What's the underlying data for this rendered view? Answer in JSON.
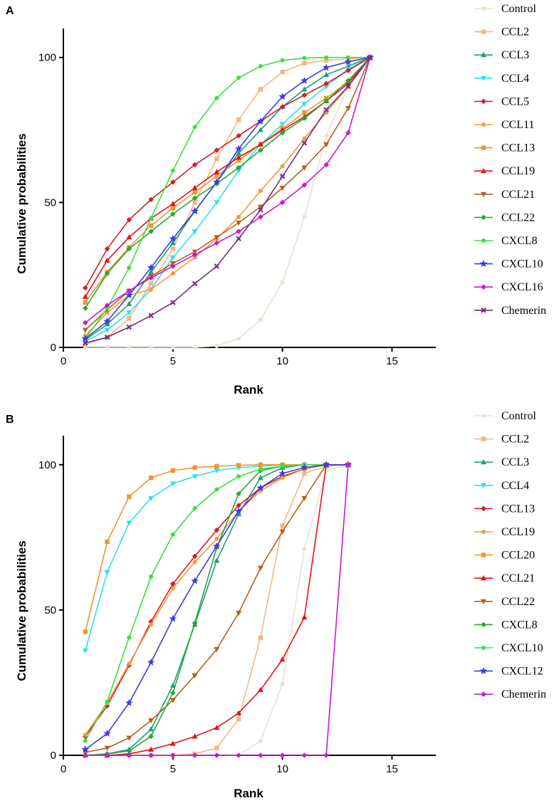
{
  "chart_data": [
    {
      "panel": "A",
      "type": "line",
      "xlabel": "Rank",
      "ylabel": "Cumulative probabilities",
      "xlim": [
        0,
        17
      ],
      "ylim": [
        0,
        110
      ],
      "xticks": [
        0,
        5,
        10,
        15
      ],
      "yticks": [
        0,
        50,
        100
      ],
      "x": [
        1,
        2,
        3,
        4,
        5,
        6,
        7,
        8,
        9,
        10,
        11,
        12,
        13,
        14
      ],
      "series": [
        {
          "name": "Control",
          "color": "#e8e2cf",
          "marker": "circle",
          "values": [
            0,
            0,
            0,
            0,
            0,
            0,
            0.5,
            3,
            9.5,
            22.5,
            45,
            73,
            90,
            100
          ]
        },
        {
          "name": "CCL2",
          "color": "#f5b583",
          "marker": "square",
          "values": [
            1,
            3.5,
            10,
            22,
            34,
            50,
            65,
            78.5,
            89,
            95,
            98,
            99,
            99.5,
            100
          ]
        },
        {
          "name": "CCL3",
          "color": "#1aa07a",
          "marker": "triangle-up",
          "values": [
            2.5,
            8,
            15,
            26,
            36,
            47,
            57,
            67,
            75,
            83,
            89,
            94,
            97,
            100
          ]
        },
        {
          "name": "CCL4",
          "color": "#2ee0f0",
          "marker": "triangle-down",
          "values": [
            2,
            6,
            12,
            20,
            31,
            40,
            50,
            61,
            70,
            77,
            84,
            90,
            96,
            100
          ]
        },
        {
          "name": "CCL5",
          "color": "#d21f27",
          "marker": "diamond",
          "values": [
            20.5,
            34,
            44,
            51,
            57,
            63,
            68,
            73,
            78,
            83,
            87,
            91,
            95.5,
            100
          ]
        },
        {
          "name": "CCL11",
          "color": "#f39a3a",
          "marker": "circle",
          "values": [
            4,
            12,
            18,
            20,
            25.5,
            31,
            37.5,
            45,
            54,
            62.5,
            72,
            81,
            90,
            100
          ]
        },
        {
          "name": "CCL13",
          "color": "#f0962e",
          "marker": "square",
          "values": [
            15.5,
            26,
            34.5,
            42,
            48,
            53.5,
            59,
            64.5,
            70,
            75.5,
            81,
            86,
            91.5,
            100
          ]
        },
        {
          "name": "CCL19",
          "color": "#e3111b",
          "marker": "triangle-up",
          "values": [
            17.5,
            30,
            38,
            44.5,
            49.5,
            55,
            60.5,
            65.5,
            70,
            75,
            79.5,
            85,
            91,
            100
          ]
        },
        {
          "name": "CCL21",
          "color": "#b5601a",
          "marker": "triangle-down",
          "values": [
            6,
            13,
            19.5,
            24.5,
            29,
            33,
            38,
            43,
            48.5,
            55,
            62,
            70,
            82.5,
            100
          ]
        },
        {
          "name": "CCL22",
          "color": "#28a832",
          "marker": "diamond",
          "values": [
            13.5,
            25.5,
            34,
            40,
            46,
            51.5,
            56.5,
            62,
            68,
            74,
            79,
            85,
            92,
            100
          ]
        },
        {
          "name": "CXCL8",
          "color": "#3ee03e",
          "marker": "circle",
          "values": [
            3,
            13.5,
            27.5,
            44.5,
            61,
            76,
            86,
            93,
            97,
            99,
            99.8,
            100,
            100,
            100
          ]
        },
        {
          "name": "CXCL10",
          "color": "#3c3ce0",
          "marker": "star",
          "values": [
            3,
            9,
            18,
            27.5,
            37.5,
            47,
            57,
            68.5,
            78,
            86.5,
            92,
            96.5,
            98.5,
            100
          ]
        },
        {
          "name": "CXCL16",
          "color": "#c71ad4",
          "marker": "diamond",
          "values": [
            8.5,
            14.5,
            19.5,
            24,
            28,
            32,
            36,
            40,
            45,
            50,
            56,
            63,
            74,
            100
          ]
        },
        {
          "name": "Chemerin",
          "color": "#7a2a8a",
          "marker": "cross",
          "values": [
            1.5,
            3.5,
            7,
            11,
            15.5,
            22,
            28,
            37.5,
            47.5,
            59,
            70.5,
            82,
            90,
            100
          ]
        }
      ]
    },
    {
      "panel": "B",
      "type": "line",
      "xlabel": "Rank",
      "ylabel": "Cumulative probabilities",
      "xlim": [
        0,
        17
      ],
      "ylim": [
        0,
        110
      ],
      "xticks": [
        0,
        5,
        10,
        15
      ],
      "yticks": [
        0,
        50,
        100
      ],
      "x": [
        1,
        2,
        3,
        4,
        5,
        6,
        7,
        8,
        9,
        10,
        11,
        12,
        13
      ],
      "series": [
        {
          "name": "Control",
          "color": "#e8e2cf",
          "marker": "circle",
          "values": [
            0,
            0,
            0,
            0,
            0,
            0,
            0,
            0,
            5,
            24.5,
            71,
            98,
            100
          ]
        },
        {
          "name": "CCL2",
          "color": "#f5b583",
          "marker": "square",
          "values": [
            0,
            0,
            0,
            0,
            0,
            0.5,
            2.5,
            12.5,
            40.5,
            79,
            97,
            99.5,
            100
          ]
        },
        {
          "name": "CCL3",
          "color": "#1aa07a",
          "marker": "triangle-up",
          "values": [
            0,
            0.5,
            2,
            9,
            24,
            45,
            67,
            83,
            95.5,
            99,
            100,
            100,
            100
          ]
        },
        {
          "name": "CCL4",
          "color": "#2ee0f0",
          "marker": "triangle-down",
          "values": [
            36,
            63,
            80,
            88.5,
            93.5,
            96,
            98,
            99,
            99.5,
            100,
            100,
            100,
            100
          ]
        },
        {
          "name": "CCL13",
          "color": "#d21f27",
          "marker": "diamond",
          "values": [
            6.5,
            17,
            31,
            46,
            59,
            68.5,
            77.5,
            86,
            92,
            96,
            98.5,
            100,
            100
          ]
        },
        {
          "name": "CCL19",
          "color": "#f39a3a",
          "marker": "circle",
          "values": [
            7,
            18,
            31.5,
            45,
            57.5,
            66.5,
            74.5,
            84,
            91,
            95.5,
            98.5,
            100,
            100
          ]
        },
        {
          "name": "CCL20",
          "color": "#f0962e",
          "marker": "square",
          "values": [
            42.5,
            73.5,
            89,
            95.5,
            98,
            99,
            99.5,
            99.8,
            100,
            100,
            100,
            100,
            100
          ]
        },
        {
          "name": "CCL21",
          "color": "#e3111b",
          "marker": "triangle-up",
          "values": [
            0,
            0,
            0.5,
            2,
            4,
            6.5,
            9.5,
            14.5,
            22.5,
            33,
            47.5,
            100,
            100
          ]
        },
        {
          "name": "CCL22",
          "color": "#b5601a",
          "marker": "triangle-down",
          "values": [
            1,
            2.5,
            6,
            12,
            19,
            27.5,
            36.5,
            49,
            64.5,
            77,
            88.5,
            100,
            100
          ]
        },
        {
          "name": "CXCL8",
          "color": "#28a832",
          "marker": "diamond",
          "values": [
            0,
            0.5,
            1.5,
            6.5,
            21.5,
            45.5,
            71.5,
            90,
            98,
            99.5,
            100,
            100,
            100
          ]
        },
        {
          "name": "CXCL10",
          "color": "#3ee03e",
          "marker": "circle",
          "values": [
            5,
            18.5,
            40.5,
            61.5,
            76,
            85,
            91.5,
            96,
            98.5,
            99.5,
            100,
            100,
            100
          ]
        },
        {
          "name": "CXCL12",
          "color": "#3c3ce0",
          "marker": "star",
          "values": [
            2,
            7.5,
            18,
            32,
            47,
            60,
            72,
            84,
            92,
            97,
            99,
            100,
            100
          ]
        },
        {
          "name": "Chemerin",
          "color": "#c71ad4",
          "marker": "diamond",
          "values": [
            0,
            0,
            0,
            0,
            0,
            0,
            0,
            0,
            0,
            0,
            0,
            0,
            100
          ]
        }
      ]
    }
  ]
}
